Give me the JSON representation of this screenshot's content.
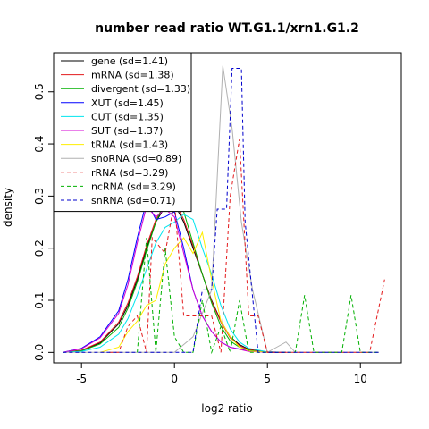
{
  "chart_data": {
    "type": "line",
    "title": "number read ratio WT.G1.1/xrn1.G1.2",
    "xlabel": "log2 ratio",
    "ylabel": "density",
    "xlim": [
      -6.5,
      12.2
    ],
    "ylim": [
      -0.02,
      0.575
    ],
    "xticks": [
      -5,
      0,
      5,
      10
    ],
    "xtick_labels": [
      "-5",
      "0",
      "5",
      "10"
    ],
    "yticks": [
      0.0,
      0.1,
      0.2,
      0.3,
      0.4,
      0.5
    ],
    "ytick_labels": [
      "0.0",
      "0.1",
      "0.2",
      "0.3",
      "0.4",
      "0.5"
    ],
    "legend_position": "top-left",
    "series": [
      {
        "name": "gene (sd=1.41)",
        "color": "#000000",
        "dash": "solid",
        "points": [
          [
            -6,
            0
          ],
          [
            -5,
            0.004
          ],
          [
            -4,
            0.018
          ],
          [
            -3,
            0.055
          ],
          [
            -2.5,
            0.09
          ],
          [
            -2,
            0.14
          ],
          [
            -1.5,
            0.2
          ],
          [
            -1,
            0.25
          ],
          [
            -0.5,
            0.28
          ],
          [
            0,
            0.285
          ],
          [
            0.5,
            0.25
          ],
          [
            1,
            0.2
          ],
          [
            1.5,
            0.15
          ],
          [
            2,
            0.1
          ],
          [
            2.5,
            0.06
          ],
          [
            3,
            0.03
          ],
          [
            3.5,
            0.015
          ],
          [
            4,
            0.006
          ],
          [
            5,
            0.001
          ],
          [
            6,
            0
          ]
        ]
      },
      {
        "name": "mRNA (sd=1.38)",
        "color": "#e31a1c",
        "dash": "solid",
        "points": [
          [
            -6,
            0
          ],
          [
            -5,
            0.004
          ],
          [
            -4,
            0.02
          ],
          [
            -3,
            0.058
          ],
          [
            -2.5,
            0.095
          ],
          [
            -2,
            0.145
          ],
          [
            -1.5,
            0.205
          ],
          [
            -1,
            0.255
          ],
          [
            -0.5,
            0.285
          ],
          [
            0,
            0.29
          ],
          [
            0.5,
            0.255
          ],
          [
            1,
            0.205
          ],
          [
            1.5,
            0.15
          ],
          [
            2,
            0.098
          ],
          [
            2.5,
            0.058
          ],
          [
            3,
            0.028
          ],
          [
            3.5,
            0.013
          ],
          [
            4,
            0.005
          ],
          [
            5,
            0.001
          ],
          [
            6,
            0
          ]
        ]
      },
      {
        "name": "divergent (sd=1.33)",
        "color": "#00b000",
        "dash": "solid",
        "points": [
          [
            -6,
            0
          ],
          [
            -5,
            0.003
          ],
          [
            -4,
            0.016
          ],
          [
            -3,
            0.048
          ],
          [
            -2.5,
            0.085
          ],
          [
            -2,
            0.135
          ],
          [
            -1.5,
            0.195
          ],
          [
            -1,
            0.25
          ],
          [
            -0.5,
            0.29
          ],
          [
            0,
            0.3
          ],
          [
            0.5,
            0.27
          ],
          [
            1,
            0.21
          ],
          [
            1.5,
            0.15
          ],
          [
            2,
            0.095
          ],
          [
            2.5,
            0.05
          ],
          [
            3,
            0.022
          ],
          [
            3.5,
            0.01
          ],
          [
            4,
            0.004
          ],
          [
            5,
            0
          ],
          [
            6,
            0
          ]
        ]
      },
      {
        "name": "XUT (sd=1.45)",
        "color": "#0000ff",
        "dash": "solid",
        "points": [
          [
            -6,
            0
          ],
          [
            -5,
            0.008
          ],
          [
            -4,
            0.03
          ],
          [
            -3,
            0.08
          ],
          [
            -2.5,
            0.14
          ],
          [
            -2,
            0.22
          ],
          [
            -1.5,
            0.29
          ],
          [
            -1,
            0.255
          ],
          [
            -0.5,
            0.26
          ],
          [
            0,
            0.27
          ],
          [
            0.5,
            0.2
          ],
          [
            1,
            0.12
          ],
          [
            1.5,
            0.07
          ],
          [
            2,
            0.04
          ],
          [
            2.5,
            0.02
          ],
          [
            3,
            0.01
          ],
          [
            4,
            0.003
          ],
          [
            5,
            0
          ],
          [
            6,
            0
          ]
        ]
      },
      {
        "name": "CUT (sd=1.35)",
        "color": "#00e5ee",
        "dash": "solid",
        "points": [
          [
            -6,
            0
          ],
          [
            -5,
            0.002
          ],
          [
            -4,
            0.01
          ],
          [
            -3,
            0.035
          ],
          [
            -2.5,
            0.065
          ],
          [
            -2,
            0.11
          ],
          [
            -1.5,
            0.16
          ],
          [
            -1,
            0.21
          ],
          [
            -0.5,
            0.24
          ],
          [
            0,
            0.25
          ],
          [
            0.5,
            0.265
          ],
          [
            1,
            0.255
          ],
          [
            1.5,
            0.2
          ],
          [
            2,
            0.15
          ],
          [
            2.5,
            0.09
          ],
          [
            3,
            0.045
          ],
          [
            3.5,
            0.02
          ],
          [
            4,
            0.008
          ],
          [
            5,
            0.001
          ],
          [
            6,
            0
          ]
        ]
      },
      {
        "name": "SUT (sd=1.37)",
        "color": "#d400d4",
        "dash": "solid",
        "points": [
          [
            -6,
            0
          ],
          [
            -5,
            0.007
          ],
          [
            -4,
            0.028
          ],
          [
            -3,
            0.075
          ],
          [
            -2.5,
            0.13
          ],
          [
            -2,
            0.21
          ],
          [
            -1.5,
            0.28
          ],
          [
            -1,
            0.26
          ],
          [
            -0.5,
            0.275
          ],
          [
            0,
            0.26
          ],
          [
            0.5,
            0.19
          ],
          [
            1,
            0.12
          ],
          [
            1.5,
            0.07
          ],
          [
            2,
            0.04
          ],
          [
            2.5,
            0.02
          ],
          [
            3,
            0.01
          ],
          [
            4,
            0.002
          ],
          [
            5,
            0
          ],
          [
            6,
            0
          ]
        ]
      },
      {
        "name": "tRNA (sd=1.43)",
        "color": "#ffee00",
        "dash": "solid",
        "points": [
          [
            -4,
            0
          ],
          [
            -3,
            0.01
          ],
          [
            -2.5,
            0.04
          ],
          [
            -2,
            0.06
          ],
          [
            -1.5,
            0.09
          ],
          [
            -1,
            0.1
          ],
          [
            -0.5,
            0.17
          ],
          [
            0,
            0.2
          ],
          [
            0.5,
            0.22
          ],
          [
            1,
            0.19
          ],
          [
            1.5,
            0.23
          ],
          [
            2,
            0.14
          ],
          [
            2.5,
            0.06
          ],
          [
            3,
            0.03
          ],
          [
            3.5,
            0.01
          ],
          [
            4,
            0.003
          ],
          [
            5,
            0
          ]
        ]
      },
      {
        "name": "snoRNA (sd=0.89)",
        "color": "#b0b0b0",
        "dash": "solid",
        "points": [
          [
            -6,
            0
          ],
          [
            0,
            0
          ],
          [
            1,
            0.03
          ],
          [
            2,
            0.12
          ],
          [
            2.6,
            0.55
          ],
          [
            3.1,
            0.43
          ],
          [
            3.6,
            0.25
          ],
          [
            4.2,
            0.12
          ],
          [
            5,
            0
          ],
          [
            5.5,
            0.01
          ],
          [
            6,
            0.02
          ],
          [
            6.5,
            0
          ],
          [
            11,
            0
          ]
        ]
      },
      {
        "name": "rRNA (sd=3.29)",
        "color": "#e31a1c",
        "dash": "dashed",
        "points": [
          [
            -3.5,
            0
          ],
          [
            -3,
            0
          ],
          [
            -2.5,
            0.05
          ],
          [
            -2,
            0.07
          ],
          [
            -1.5,
            0.0
          ],
          [
            -1.2,
            0.22
          ],
          [
            -0.5,
            0.19
          ],
          [
            0,
            0.29
          ],
          [
            0.5,
            0.07
          ],
          [
            1,
            0.07
          ],
          [
            2,
            0.07
          ],
          [
            2.5,
            0.0
          ],
          [
            3,
            0.3
          ],
          [
            3.5,
            0.41
          ],
          [
            4,
            0.07
          ],
          [
            4.5,
            0.07
          ],
          [
            5,
            0.0
          ],
          [
            10,
            0
          ],
          [
            10.5,
            0.0
          ],
          [
            11.3,
            0.14
          ]
        ]
      },
      {
        "name": "ncRNA (sd=3.29)",
        "color": "#00b000",
        "dash": "dashed",
        "points": [
          [
            -2,
            0
          ],
          [
            -1.5,
            0.22
          ],
          [
            -1,
            0.0
          ],
          [
            -0.5,
            0.2
          ],
          [
            0,
            0.03
          ],
          [
            0.5,
            0.0
          ],
          [
            1,
            0.0
          ],
          [
            1.5,
            0.1
          ],
          [
            2,
            0.0
          ],
          [
            2.5,
            0.05
          ],
          [
            3,
            0.0
          ],
          [
            3.5,
            0.1
          ],
          [
            4,
            0.0
          ],
          [
            5,
            0.0
          ],
          [
            6.5,
            0.0
          ],
          [
            7,
            0.11
          ],
          [
            7.5,
            0.0
          ],
          [
            9,
            0.0
          ],
          [
            9.5,
            0.11
          ],
          [
            10,
            0.0
          ],
          [
            11,
            0
          ]
        ]
      },
      {
        "name": "snRNA (sd=0.71)",
        "color": "#0000cc",
        "dash": "dashed",
        "points": [
          [
            -6,
            0
          ],
          [
            1,
            0
          ],
          [
            1.5,
            0.12
          ],
          [
            2,
            0.12
          ],
          [
            2.3,
            0.275
          ],
          [
            2.8,
            0.275
          ],
          [
            3.1,
            0.545
          ],
          [
            3.6,
            0.545
          ],
          [
            3.8,
            0.25
          ],
          [
            4.5,
            0.0
          ],
          [
            5,
            0
          ],
          [
            11,
            0
          ]
        ]
      }
    ]
  }
}
